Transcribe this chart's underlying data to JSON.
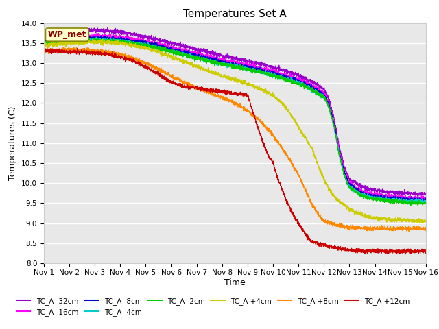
{
  "title": "Temperatures Set A",
  "ylabel": "Temperatures (C)",
  "xlabel": "Time",
  "ylim": [
    8.0,
    14.0
  ],
  "xlim": [
    0,
    15
  ],
  "yticks": [
    8.0,
    8.5,
    9.0,
    9.5,
    10.0,
    10.5,
    11.0,
    11.5,
    12.0,
    12.5,
    13.0,
    13.5,
    14.0
  ],
  "xtick_labels": [
    "Nov 1",
    "Nov 2",
    "Nov 3",
    "Nov 4",
    "Nov 5",
    "Nov 6",
    "Nov 7",
    "Nov 8",
    "Nov 9",
    "Nov 10",
    "Nov 11",
    "Nov 12",
    "Nov 13",
    "Nov 14",
    "Nov 15",
    "Nov 16"
  ],
  "plot_bg_color": "#e8e8e8",
  "fig_bg_color": "#ffffff",
  "wp_met_label": "WP_met",
  "wp_met_bg": "#ffffcc",
  "wp_met_border": "#888800",
  "wp_met_text_color": "#880000",
  "series": [
    {
      "label": "TC_A -32cm",
      "color": "#9900cc",
      "waypoints": [
        [
          0,
          13.75
        ],
        [
          0.5,
          13.78
        ],
        [
          1,
          13.8
        ],
        [
          1.5,
          13.82
        ],
        [
          2,
          13.82
        ],
        [
          2.5,
          13.8
        ],
        [
          3,
          13.78
        ],
        [
          3.5,
          13.72
        ],
        [
          4,
          13.65
        ],
        [
          4.5,
          13.58
        ],
        [
          5,
          13.5
        ],
        [
          5.5,
          13.42
        ],
        [
          6,
          13.34
        ],
        [
          6.5,
          13.26
        ],
        [
          7,
          13.18
        ],
        [
          7.5,
          13.12
        ],
        [
          8,
          13.05
        ],
        [
          8.5,
          12.98
        ],
        [
          9,
          12.9
        ],
        [
          9.5,
          12.8
        ],
        [
          10,
          12.7
        ],
        [
          10.5,
          12.55
        ],
        [
          11,
          12.35
        ],
        [
          11.2,
          12.1
        ],
        [
          11.4,
          11.6
        ],
        [
          11.6,
          10.9
        ],
        [
          11.8,
          10.4
        ],
        [
          12,
          10.1
        ],
        [
          12.5,
          9.9
        ],
        [
          13,
          9.82
        ],
        [
          13.5,
          9.78
        ],
        [
          14,
          9.76
        ],
        [
          14.5,
          9.74
        ],
        [
          15,
          9.72
        ]
      ]
    },
    {
      "label": "TC_A -16cm",
      "color": "#ff00ff",
      "waypoints": [
        [
          0,
          13.6
        ],
        [
          0.5,
          13.62
        ],
        [
          1,
          13.65
        ],
        [
          1.5,
          13.67
        ],
        [
          2,
          13.68
        ],
        [
          2.5,
          13.67
        ],
        [
          3,
          13.65
        ],
        [
          3.5,
          13.6
        ],
        [
          4,
          13.55
        ],
        [
          4.5,
          13.48
        ],
        [
          5,
          13.4
        ],
        [
          5.5,
          13.32
        ],
        [
          6,
          13.24
        ],
        [
          6.5,
          13.16
        ],
        [
          7,
          13.08
        ],
        [
          7.5,
          13.02
        ],
        [
          8,
          12.95
        ],
        [
          8.5,
          12.88
        ],
        [
          9,
          12.8
        ],
        [
          9.5,
          12.7
        ],
        [
          10,
          12.6
        ],
        [
          10.5,
          12.45
        ],
        [
          11,
          12.25
        ],
        [
          11.2,
          12.0
        ],
        [
          11.4,
          11.5
        ],
        [
          11.6,
          10.8
        ],
        [
          11.8,
          10.3
        ],
        [
          12,
          10.0
        ],
        [
          12.5,
          9.8
        ],
        [
          13,
          9.72
        ],
        [
          13.5,
          9.68
        ],
        [
          14,
          9.65
        ],
        [
          14.5,
          9.63
        ],
        [
          15,
          9.62
        ]
      ]
    },
    {
      "label": "TC_A -8cm",
      "color": "#0000cc",
      "waypoints": [
        [
          0,
          13.55
        ],
        [
          0.5,
          13.57
        ],
        [
          1,
          13.6
        ],
        [
          1.5,
          13.62
        ],
        [
          2,
          13.63
        ],
        [
          2.5,
          13.62
        ],
        [
          3,
          13.6
        ],
        [
          3.5,
          13.55
        ],
        [
          4,
          13.5
        ],
        [
          4.5,
          13.43
        ],
        [
          5,
          13.35
        ],
        [
          5.5,
          13.27
        ],
        [
          6,
          13.19
        ],
        [
          6.5,
          13.11
        ],
        [
          7,
          13.03
        ],
        [
          7.5,
          12.97
        ],
        [
          8,
          12.9
        ],
        [
          8.5,
          12.83
        ],
        [
          9,
          12.75
        ],
        [
          9.5,
          12.65
        ],
        [
          10,
          12.55
        ],
        [
          10.5,
          12.4
        ],
        [
          11,
          12.2
        ],
        [
          11.2,
          11.95
        ],
        [
          11.4,
          11.45
        ],
        [
          11.6,
          10.75
        ],
        [
          11.8,
          10.25
        ],
        [
          12,
          9.95
        ],
        [
          12.5,
          9.75
        ],
        [
          13,
          9.67
        ],
        [
          13.5,
          9.63
        ],
        [
          14,
          9.61
        ],
        [
          14.5,
          9.59
        ],
        [
          15,
          9.58
        ]
      ]
    },
    {
      "label": "TC_A -4cm",
      "color": "#00cccc",
      "waypoints": [
        [
          0,
          13.5
        ],
        [
          0.5,
          13.52
        ],
        [
          1,
          13.55
        ],
        [
          1.5,
          13.57
        ],
        [
          2,
          13.58
        ],
        [
          2.5,
          13.57
        ],
        [
          3,
          13.55
        ],
        [
          3.5,
          13.5
        ],
        [
          4,
          13.45
        ],
        [
          4.5,
          13.38
        ],
        [
          5,
          13.3
        ],
        [
          5.5,
          13.22
        ],
        [
          6,
          13.14
        ],
        [
          6.5,
          13.06
        ],
        [
          7,
          12.98
        ],
        [
          7.5,
          12.92
        ],
        [
          8,
          12.85
        ],
        [
          8.5,
          12.78
        ],
        [
          9,
          12.7
        ],
        [
          9.5,
          12.6
        ],
        [
          10,
          12.5
        ],
        [
          10.5,
          12.35
        ],
        [
          11,
          12.15
        ],
        [
          11.2,
          11.9
        ],
        [
          11.4,
          11.4
        ],
        [
          11.6,
          10.7
        ],
        [
          11.8,
          10.2
        ],
        [
          12,
          9.9
        ],
        [
          12.5,
          9.7
        ],
        [
          13,
          9.62
        ],
        [
          13.5,
          9.58
        ],
        [
          14,
          9.56
        ],
        [
          14.5,
          9.55
        ],
        [
          15,
          9.54
        ]
      ]
    },
    {
      "label": "TC_A -2cm",
      "color": "#00cc00",
      "waypoints": [
        [
          0,
          13.5
        ],
        [
          0.5,
          13.52
        ],
        [
          1,
          13.54
        ],
        [
          1.5,
          13.56
        ],
        [
          2,
          13.57
        ],
        [
          2.5,
          13.56
        ],
        [
          3,
          13.54
        ],
        [
          3.5,
          13.49
        ],
        [
          4,
          13.44
        ],
        [
          4.5,
          13.37
        ],
        [
          5,
          13.29
        ],
        [
          5.5,
          13.21
        ],
        [
          6,
          13.13
        ],
        [
          6.5,
          13.05
        ],
        [
          7,
          12.97
        ],
        [
          7.5,
          12.91
        ],
        [
          8,
          12.84
        ],
        [
          8.5,
          12.77
        ],
        [
          9,
          12.69
        ],
        [
          9.5,
          12.59
        ],
        [
          10,
          12.49
        ],
        [
          10.5,
          12.34
        ],
        [
          11,
          12.14
        ],
        [
          11.2,
          11.89
        ],
        [
          11.4,
          11.39
        ],
        [
          11.6,
          10.69
        ],
        [
          11.8,
          10.18
        ],
        [
          12,
          9.88
        ],
        [
          12.5,
          9.68
        ],
        [
          13,
          9.6
        ],
        [
          13.5,
          9.56
        ],
        [
          14,
          9.53
        ],
        [
          14.5,
          9.51
        ],
        [
          15,
          9.5
        ]
      ]
    },
    {
      "label": "TC_A +4cm",
      "color": "#cccc00",
      "waypoints": [
        [
          0,
          13.45
        ],
        [
          0.5,
          13.47
        ],
        [
          1,
          13.5
        ],
        [
          1.5,
          13.52
        ],
        [
          2,
          13.53
        ],
        [
          2.5,
          13.52
        ],
        [
          3,
          13.5
        ],
        [
          3.5,
          13.44
        ],
        [
          4,
          13.38
        ],
        [
          4.5,
          13.28
        ],
        [
          5,
          13.16
        ],
        [
          5.5,
          13.04
        ],
        [
          6,
          12.92
        ],
        [
          6.5,
          12.8
        ],
        [
          7,
          12.68
        ],
        [
          7.5,
          12.58
        ],
        [
          8,
          12.48
        ],
        [
          8.5,
          12.35
        ],
        [
          9,
          12.2
        ],
        [
          9.5,
          11.9
        ],
        [
          10,
          11.4
        ],
        [
          10.5,
          10.9
        ],
        [
          10.8,
          10.4
        ],
        [
          11,
          10.1
        ],
        [
          11.2,
          9.85
        ],
        [
          11.5,
          9.6
        ],
        [
          12,
          9.35
        ],
        [
          12.5,
          9.2
        ],
        [
          13,
          9.12
        ],
        [
          13.5,
          9.1
        ],
        [
          14,
          9.08
        ],
        [
          14.5,
          9.06
        ],
        [
          15,
          9.05
        ]
      ]
    },
    {
      "label": "TC_A +8cm",
      "color": "#ff8800",
      "waypoints": [
        [
          0,
          13.3
        ],
        [
          0.5,
          13.32
        ],
        [
          1,
          13.34
        ],
        [
          1.5,
          13.33
        ],
        [
          2,
          13.32
        ],
        [
          2.5,
          13.28
        ],
        [
          3,
          13.22
        ],
        [
          3.5,
          13.12
        ],
        [
          4,
          13.0
        ],
        [
          4.5,
          12.85
        ],
        [
          5,
          12.68
        ],
        [
          5.5,
          12.52
        ],
        [
          6,
          12.38
        ],
        [
          6.5,
          12.26
        ],
        [
          7,
          12.14
        ],
        [
          7.5,
          12.0
        ],
        [
          8,
          11.8
        ],
        [
          8.5,
          11.55
        ],
        [
          9,
          11.2
        ],
        [
          9.5,
          10.75
        ],
        [
          10,
          10.2
        ],
        [
          10.3,
          9.8
        ],
        [
          10.5,
          9.5
        ],
        [
          10.8,
          9.2
        ],
        [
          11,
          9.05
        ],
        [
          11.5,
          8.95
        ],
        [
          12,
          8.9
        ],
        [
          12.5,
          8.88
        ],
        [
          13,
          8.87
        ],
        [
          13.5,
          8.87
        ],
        [
          14,
          8.87
        ],
        [
          14.5,
          8.87
        ],
        [
          15,
          8.87
        ]
      ]
    },
    {
      "label": "TC_A +12cm",
      "color": "#cc0000",
      "waypoints": [
        [
          0,
          13.3
        ],
        [
          0.5,
          13.3
        ],
        [
          1,
          13.28
        ],
        [
          1.5,
          13.27
        ],
        [
          2,
          13.26
        ],
        [
          2.5,
          13.22
        ],
        [
          3,
          13.15
        ],
        [
          3.5,
          13.05
        ],
        [
          4,
          12.9
        ],
        [
          4.5,
          12.72
        ],
        [
          5,
          12.52
        ],
        [
          5.5,
          12.42
        ],
        [
          6,
          12.38
        ],
        [
          6.5,
          12.32
        ],
        [
          7,
          12.28
        ],
        [
          7.5,
          12.24
        ],
        [
          8,
          12.2
        ],
        [
          8.2,
          11.8
        ],
        [
          8.5,
          11.2
        ],
        [
          8.8,
          10.7
        ],
        [
          9,
          10.5
        ],
        [
          9.2,
          10.1
        ],
        [
          9.5,
          9.6
        ],
        [
          9.8,
          9.2
        ],
        [
          10,
          9.0
        ],
        [
          10.3,
          8.7
        ],
        [
          10.5,
          8.55
        ],
        [
          11,
          8.45
        ],
        [
          11.5,
          8.38
        ],
        [
          12,
          8.33
        ],
        [
          12.5,
          8.3
        ],
        [
          13,
          8.3
        ],
        [
          13.5,
          8.3
        ],
        [
          14,
          8.3
        ],
        [
          14.5,
          8.3
        ],
        [
          15,
          8.3
        ]
      ]
    }
  ]
}
